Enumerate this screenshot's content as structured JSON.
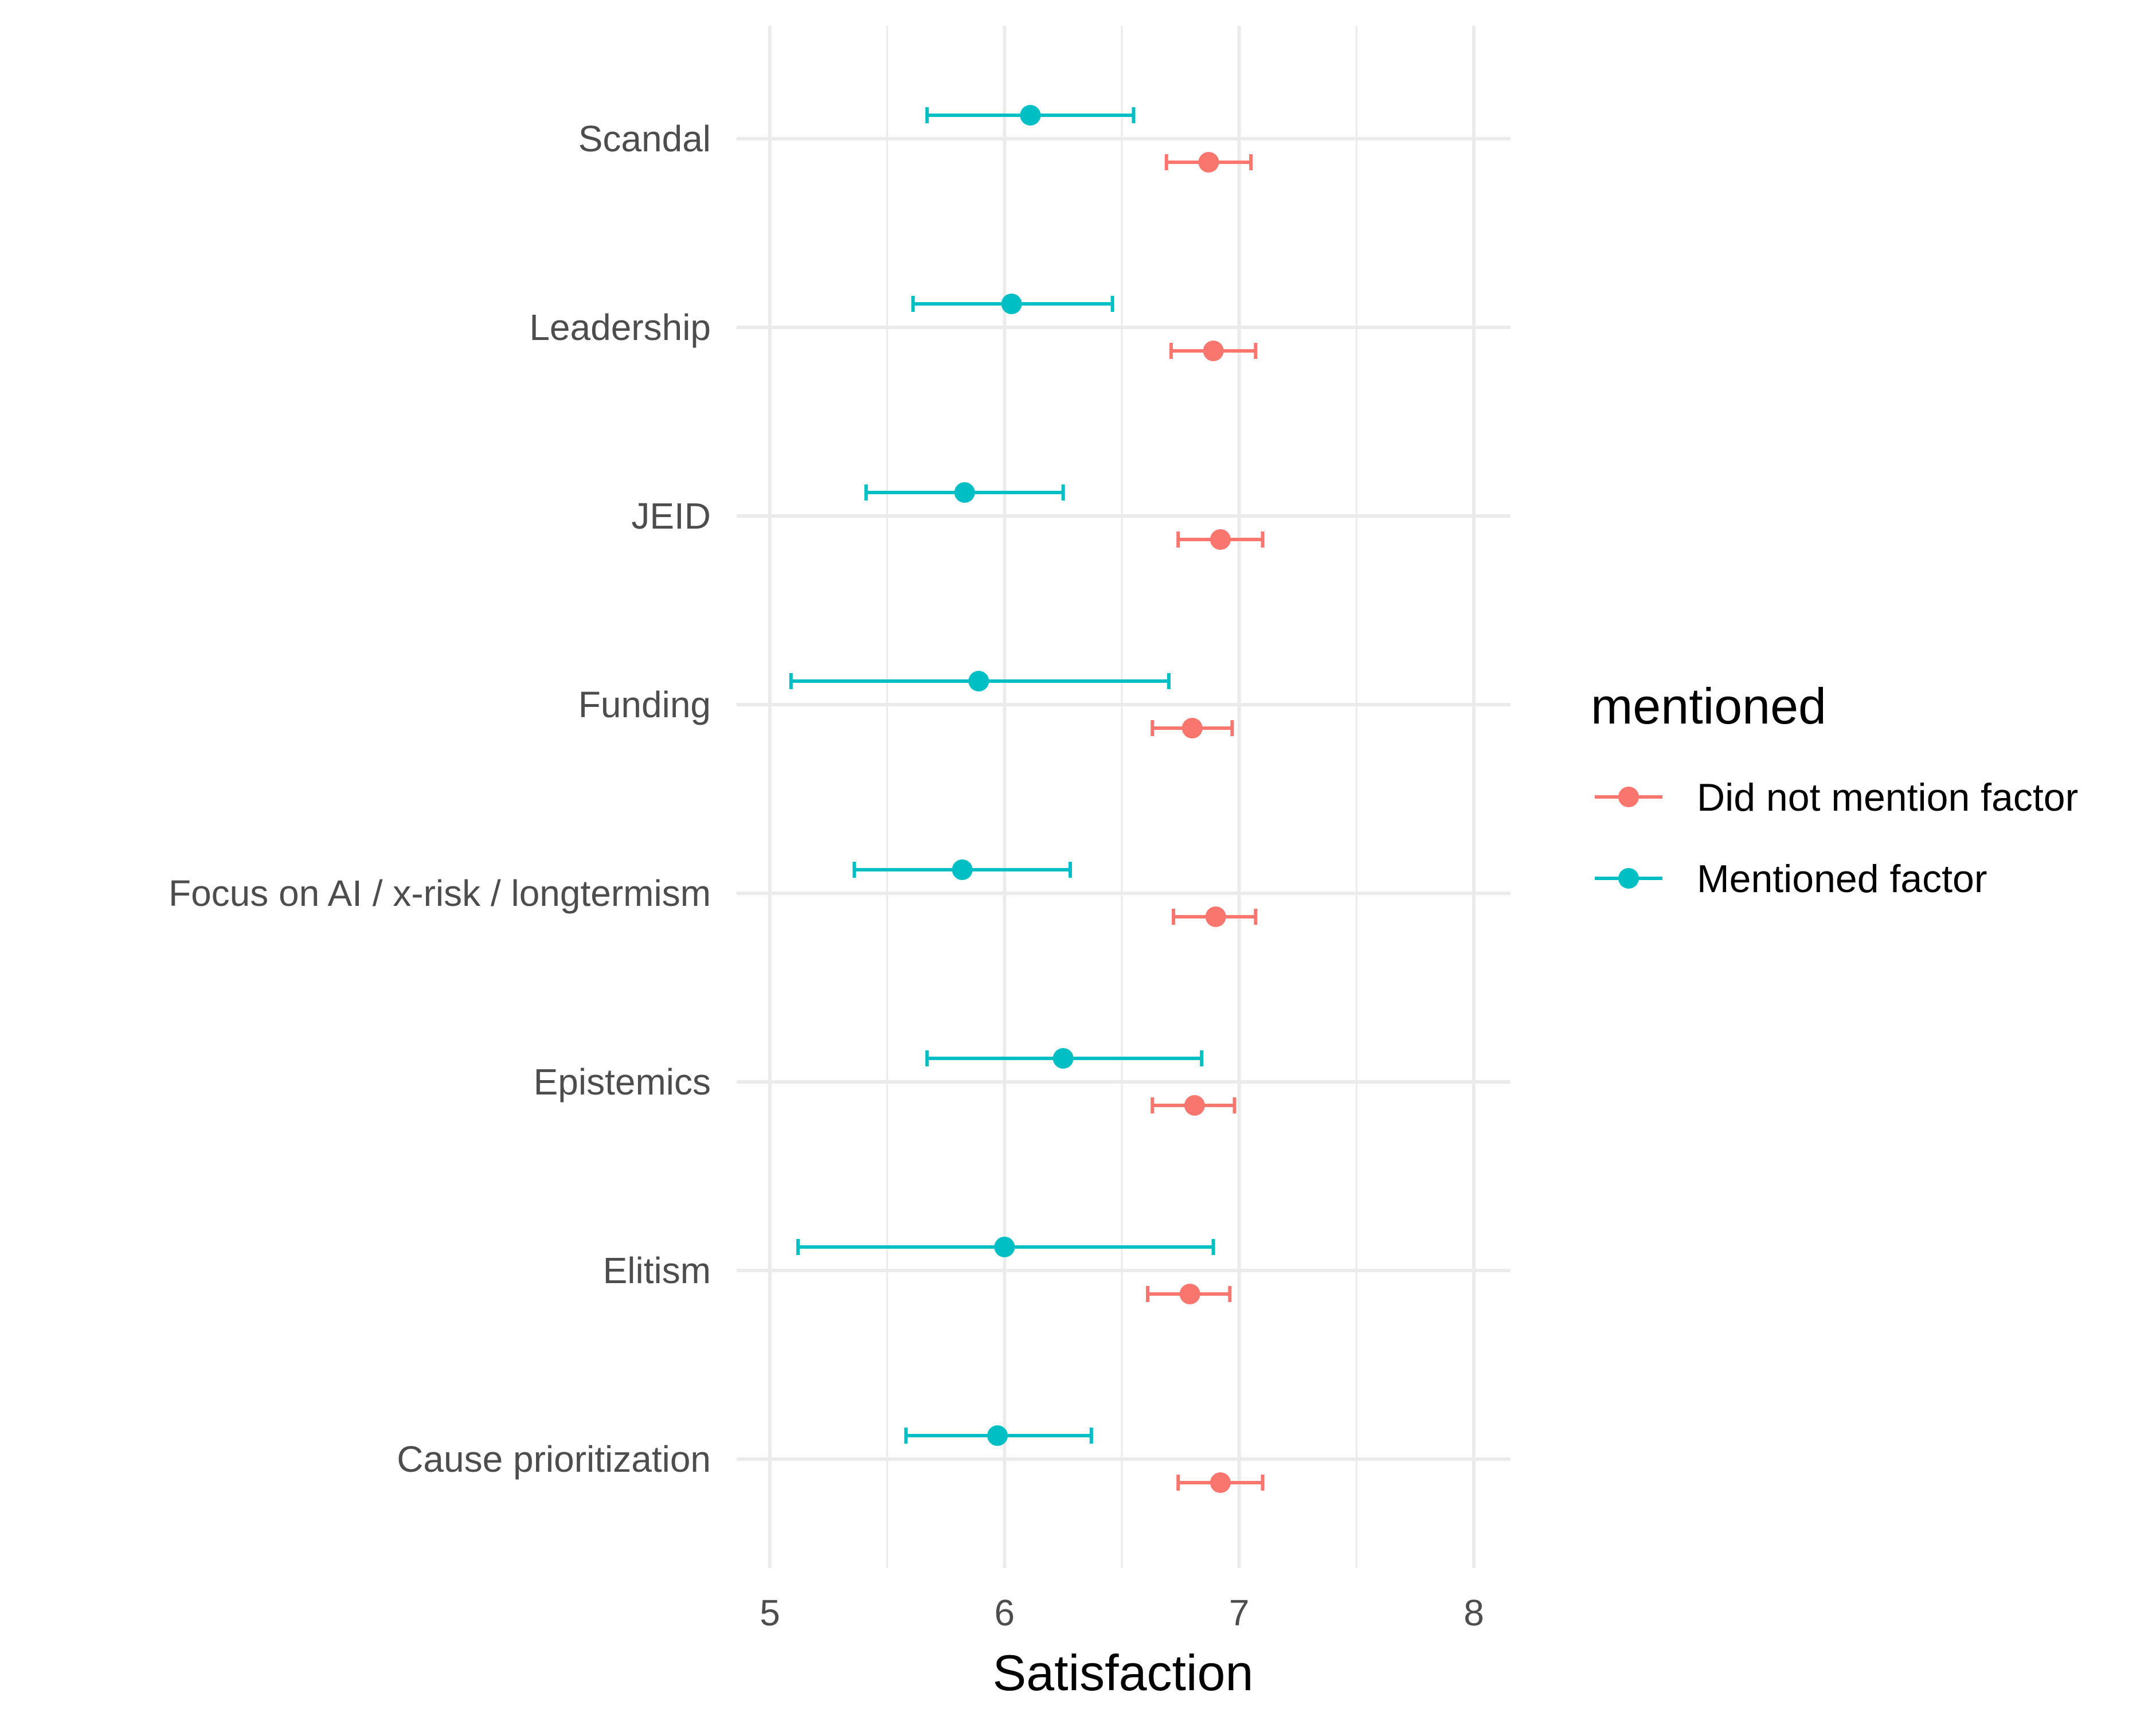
{
  "chart_data": {
    "type": "scatter",
    "title": "",
    "xlabel": "Satisfaction",
    "ylabel": "",
    "xlim": [
      4.85,
      8.15
    ],
    "x_ticks": [
      "5",
      "6",
      "7",
      "8"
    ],
    "grid": true,
    "legend_position": "right",
    "legend_title": "mentioned",
    "categories": [
      "Scandal",
      "Leadership",
      "JEID",
      "Funding",
      "Focus on AI / x-risk / longtermism",
      "Epistemics",
      "Elitism",
      "Cause prioritization"
    ],
    "series": [
      {
        "name": "Did not mention factor",
        "color": "#F8766D",
        "values": [
          6.87,
          6.89,
          6.92,
          6.8,
          6.9,
          6.81,
          6.79,
          6.92
        ],
        "ci_low": [
          6.69,
          6.71,
          6.74,
          6.63,
          6.72,
          6.63,
          6.61,
          6.74
        ],
        "ci_high": [
          7.05,
          7.07,
          7.1,
          6.97,
          7.07,
          6.98,
          6.96,
          7.1
        ]
      },
      {
        "name": "Mentioned factor",
        "color": "#00BFC4",
        "values": [
          6.11,
          6.03,
          5.83,
          5.89,
          5.82,
          6.25,
          6.0,
          5.97
        ],
        "ci_low": [
          5.67,
          5.61,
          5.41,
          5.09,
          5.36,
          5.67,
          5.12,
          5.58
        ],
        "ci_high": [
          6.55,
          6.46,
          6.25,
          6.7,
          6.28,
          6.84,
          6.89,
          6.37
        ]
      }
    ]
  }
}
